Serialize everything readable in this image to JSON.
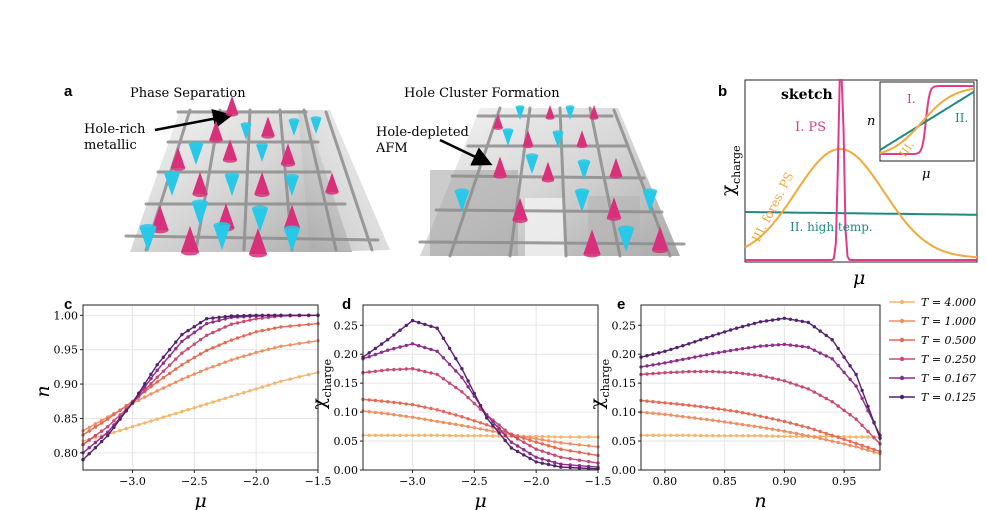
{
  "panels": {
    "a": {
      "letter": "a",
      "left_title": "Phase Separation",
      "right_title": "Hole Cluster Formation",
      "left_label": [
        "Hole-rich",
        "metallic"
      ],
      "right_label": [
        "Hole-depleted",
        "AFM"
      ]
    },
    "b": {
      "letter": "b",
      "title": "sketch",
      "ylabel": "χ",
      "ylabel_sub": "charge",
      "xlabel": "μ",
      "label_ps": "I. PS",
      "label_fores": "III. fores. PS",
      "label_high": "II. high temp.",
      "inset_ylabel": "n",
      "inset_xlabel": "μ",
      "inset_I": "I.",
      "inset_II": "II.",
      "inset_III": "III."
    },
    "c": {
      "letter": "c"
    },
    "d": {
      "letter": "d"
    },
    "e": {
      "letter": "e"
    }
  },
  "colors": {
    "T4": "#f5b66e",
    "T1": "#ef8f62",
    "T05": "#e56a55",
    "T025": "#c94a73",
    "T0167": "#8e2d8a",
    "T0125": "#54216f",
    "pink": "#d8307a",
    "cyan": "#28c8e8",
    "ps": "#e03b8b",
    "fores": "#f2a93b",
    "high": "#1f8a82"
  },
  "legend": [
    {
      "label": "T = 4.000",
      "color": "#f5b66e"
    },
    {
      "label": "T = 1.000",
      "color": "#ef8f62"
    },
    {
      "label": "T = 0.500",
      "color": "#e56a55"
    },
    {
      "label": "T = 0.250",
      "color": "#c94a73"
    },
    {
      "label": "T = 0.167",
      "color": "#8e2d8a"
    },
    {
      "label": "T = 0.125",
      "color": "#54216f"
    }
  ],
  "chart_data": [
    {
      "panel": "c",
      "type": "line",
      "xlabel": "μ",
      "ylabel": "n",
      "xlim": [
        -3.4,
        -1.5
      ],
      "ylim": [
        0.775,
        1.015
      ],
      "xticks": [
        -3.0,
        -2.5,
        -2.0,
        -1.5
      ],
      "xtick_labels": [
        "−3.0",
        "−2.5",
        "−2.0",
        "−1.5"
      ],
      "yticks": [
        0.8,
        0.85,
        0.9,
        0.95,
        1.0
      ],
      "ytick_labels": [
        "0.80",
        "0.85",
        "0.90",
        "0.95",
        "1.00"
      ],
      "x": [
        -3.4,
        -3.2,
        -3.0,
        -2.8,
        -2.6,
        -2.4,
        -2.2,
        -2.0,
        -1.8,
        -1.5
      ],
      "series": [
        {
          "name": "T = 4.000",
          "values": [
            0.817,
            0.827,
            0.838,
            0.849,
            0.86,
            0.871,
            0.882,
            0.893,
            0.904,
            0.917
          ]
        },
        {
          "name": "T = 1.000",
          "values": [
            0.832,
            0.852,
            0.872,
            0.89,
            0.907,
            0.922,
            0.935,
            0.946,
            0.955,
            0.963
          ]
        },
        {
          "name": "T = 0.500",
          "values": [
            0.826,
            0.849,
            0.875,
            0.903,
            0.928,
            0.949,
            0.964,
            0.976,
            0.983,
            0.988
          ]
        },
        {
          "name": "T = 0.250",
          "values": [
            0.812,
            0.838,
            0.872,
            0.91,
            0.945,
            0.971,
            0.987,
            0.995,
            0.999,
            1.0
          ]
        },
        {
          "name": "T = 0.167",
          "values": [
            0.8,
            0.83,
            0.872,
            0.92,
            0.962,
            0.988,
            0.997,
            0.999,
            1.0,
            1.0
          ]
        },
        {
          "name": "T = 0.125",
          "values": [
            0.79,
            0.825,
            0.873,
            0.928,
            0.972,
            0.995,
            0.999,
            1.0,
            1.0,
            1.0
          ]
        }
      ]
    },
    {
      "panel": "d",
      "type": "line",
      "xlabel": "μ",
      "ylabel": "χ_charge",
      "xlim": [
        -3.4,
        -1.5
      ],
      "ylim": [
        0.0,
        0.285
      ],
      "xticks": [
        -3.0,
        -2.5,
        -2.0,
        -1.5
      ],
      "xtick_labels": [
        "−3.0",
        "−2.5",
        "−2.0",
        "−1.5"
      ],
      "yticks": [
        0.0,
        0.05,
        0.1,
        0.15,
        0.2,
        0.25
      ],
      "ytick_labels": [
        "0.00",
        "0.05",
        "0.10",
        "0.15",
        "0.20",
        "0.25"
      ],
      "x": [
        -3.4,
        -3.2,
        -3.0,
        -2.8,
        -2.6,
        -2.4,
        -2.2,
        -2.0,
        -1.8,
        -1.5
      ],
      "series": [
        {
          "name": "T = 4.000",
          "values": [
            0.06,
            0.06,
            0.06,
            0.06,
            0.059,
            0.059,
            0.058,
            0.058,
            0.057,
            0.057
          ]
        },
        {
          "name": "T = 1.000",
          "values": [
            0.102,
            0.097,
            0.091,
            0.084,
            0.077,
            0.069,
            0.061,
            0.054,
            0.047,
            0.04
          ]
        },
        {
          "name": "T = 0.500",
          "values": [
            0.122,
            0.118,
            0.113,
            0.104,
            0.092,
            0.078,
            0.062,
            0.048,
            0.036,
            0.025
          ]
        },
        {
          "name": "T = 0.250",
          "values": [
            0.168,
            0.173,
            0.175,
            0.165,
            0.135,
            0.095,
            0.06,
            0.036,
            0.022,
            0.012
          ]
        },
        {
          "name": "T = 0.167",
          "values": [
            0.192,
            0.207,
            0.218,
            0.205,
            0.16,
            0.095,
            0.048,
            0.022,
            0.01,
            0.005
          ]
        },
        {
          "name": "T = 0.125",
          "values": [
            0.195,
            0.225,
            0.258,
            0.245,
            0.175,
            0.09,
            0.038,
            0.014,
            0.005,
            0.002
          ]
        }
      ]
    },
    {
      "panel": "e",
      "type": "line",
      "xlabel": "n",
      "ylabel": "χ_charge",
      "xlim": [
        0.78,
        0.98
      ],
      "ylim": [
        0.0,
        0.285
      ],
      "xticks": [
        0.8,
        0.85,
        0.9,
        0.95
      ],
      "xtick_labels": [
        "0.80",
        "0.85",
        "0.90",
        "0.95"
      ],
      "yticks": [
        0.0,
        0.05,
        0.1,
        0.15,
        0.2,
        0.25
      ],
      "ytick_labels": [
        "0.00",
        "0.05",
        "0.10",
        "0.15",
        "0.20",
        "0.25"
      ],
      "x": [
        0.78,
        0.8,
        0.82,
        0.84,
        0.86,
        0.88,
        0.9,
        0.92,
        0.94,
        0.96,
        0.98
      ],
      "series": [
        {
          "name": "T = 4.000",
          "values": [
            0.06,
            0.06,
            0.06,
            0.059,
            0.059,
            0.059,
            0.058,
            0.058,
            0.058,
            0.057,
            0.057
          ]
        },
        {
          "name": "T = 1.000",
          "values": [
            0.1,
            0.096,
            0.091,
            0.086,
            0.08,
            0.074,
            0.067,
            0.059,
            0.05,
            0.04,
            0.028
          ]
        },
        {
          "name": "T = 0.500",
          "values": [
            0.12,
            0.116,
            0.112,
            0.107,
            0.101,
            0.093,
            0.084,
            0.073,
            0.06,
            0.046,
            0.032
          ]
        },
        {
          "name": "T = 0.250",
          "values": [
            0.165,
            0.168,
            0.17,
            0.17,
            0.168,
            0.163,
            0.154,
            0.14,
            0.118,
            0.088,
            0.045
          ]
        },
        {
          "name": "T = 0.167",
          "values": [
            0.178,
            0.185,
            0.193,
            0.201,
            0.208,
            0.214,
            0.217,
            0.212,
            0.192,
            0.145,
            0.06
          ]
        },
        {
          "name": "T = 0.125",
          "values": [
            0.195,
            0.205,
            0.218,
            0.232,
            0.245,
            0.256,
            0.262,
            0.255,
            0.225,
            0.165,
            0.055
          ]
        }
      ]
    }
  ]
}
